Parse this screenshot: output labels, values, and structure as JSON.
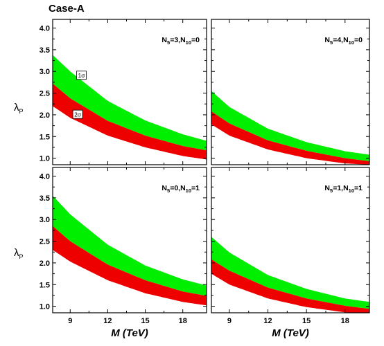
{
  "figure_title": "Case-A",
  "xlabel": "M (TeV)",
  "ylabel_main": "λ",
  "ylabel_sub": "P",
  "colors": {
    "sigma1": "#00ee00",
    "sigma2": "#ee0000",
    "axis": "#000000"
  },
  "chart_data": [
    {
      "type": "area",
      "panel": "top-left",
      "label_main": "N",
      "label_parts": [
        [
          "5",
          "=3,N"
        ],
        [
          "10",
          "=0"
        ]
      ],
      "x_ticks": [
        9,
        12,
        15,
        18
      ],
      "y_ticks": [
        "1.0",
        "1.5",
        "2.0",
        "2.5",
        "3.0",
        "3.5",
        "4.0"
      ],
      "xlim": [
        7.6,
        19.9
      ],
      "ylim": [
        0.85,
        4.2
      ],
      "series": [
        {
          "name": "1σ",
          "x": [
            7.6,
            9,
            12,
            15,
            18,
            19.9
          ],
          "upper": [
            3.38,
            3.0,
            2.32,
            1.87,
            1.55,
            1.4
          ],
          "lower": [
            2.72,
            2.38,
            1.86,
            1.52,
            1.28,
            1.18
          ]
        },
        {
          "name": "2σ",
          "x": [
            7.6,
            9,
            12,
            15,
            18,
            19.9
          ],
          "upper": [
            2.72,
            2.38,
            1.86,
            1.52,
            1.28,
            1.18
          ],
          "lower": [
            2.2,
            1.93,
            1.52,
            1.25,
            1.05,
            0.97
          ]
        }
      ],
      "annotations": [
        {
          "text": "1σ",
          "x": 9.9,
          "y": 2.88
        },
        {
          "text": "2σ",
          "x": 9.6,
          "y": 1.98
        }
      ]
    },
    {
      "type": "area",
      "panel": "top-right",
      "label_main": "N",
      "label_parts": [
        [
          "5",
          "=4,N"
        ],
        [
          "10",
          "=0"
        ]
      ],
      "x_ticks": [
        9,
        12,
        15,
        18
      ],
      "xlim": [
        7.6,
        19.9
      ],
      "ylim": [
        0.85,
        4.2
      ],
      "series": [
        {
          "name": "1σ",
          "x": [
            7.6,
            9,
            12,
            15,
            18,
            19.9
          ],
          "upper": [
            2.55,
            2.18,
            1.68,
            1.37,
            1.16,
            1.08
          ],
          "lower": [
            2.08,
            1.8,
            1.41,
            1.17,
            1.0,
            0.93
          ]
        },
        {
          "name": "2σ",
          "x": [
            7.6,
            9,
            12,
            15,
            18,
            19.9
          ],
          "upper": [
            2.08,
            1.8,
            1.41,
            1.17,
            1.0,
            0.93
          ],
          "lower": [
            1.78,
            1.52,
            1.2,
            1.0,
            0.88,
            0.85
          ]
        }
      ]
    },
    {
      "type": "area",
      "panel": "bottom-left",
      "label_main": "N",
      "label_parts": [
        [
          "5",
          "=0,N"
        ],
        [
          "10",
          "=1"
        ]
      ],
      "x_ticks": [
        9,
        12,
        15,
        18
      ],
      "y_ticks": [
        "1.0",
        "1.5",
        "2.0",
        "2.5",
        "3.0",
        "3.5",
        "4.0"
      ],
      "xlim": [
        7.6,
        19.9
      ],
      "ylim": [
        0.85,
        4.2
      ],
      "series": [
        {
          "name": "1σ",
          "x": [
            7.6,
            9,
            12,
            15,
            18,
            19.9
          ],
          "upper": [
            3.55,
            3.12,
            2.42,
            1.94,
            1.62,
            1.48
          ],
          "lower": [
            2.85,
            2.5,
            1.96,
            1.6,
            1.34,
            1.24
          ]
        },
        {
          "name": "2σ",
          "x": [
            7.6,
            9,
            12,
            15,
            18,
            19.9
          ],
          "upper": [
            2.85,
            2.5,
            1.96,
            1.6,
            1.34,
            1.24
          ],
          "lower": [
            2.3,
            2.03,
            1.6,
            1.3,
            1.1,
            1.02
          ]
        }
      ]
    },
    {
      "type": "area",
      "panel": "bottom-right",
      "label_main": "N",
      "label_parts": [
        [
          "5",
          "=1,N"
        ],
        [
          "10",
          "=1"
        ]
      ],
      "x_ticks": [
        9,
        12,
        15,
        18
      ],
      "xlim": [
        7.6,
        19.9
      ],
      "ylim": [
        0.85,
        4.2
      ],
      "series": [
        {
          "name": "1σ",
          "x": [
            7.6,
            9,
            12,
            15,
            18,
            19.9
          ],
          "upper": [
            2.6,
            2.24,
            1.72,
            1.4,
            1.18,
            1.1
          ],
          "lower": [
            2.08,
            1.82,
            1.43,
            1.18,
            1.01,
            0.94
          ]
        },
        {
          "name": "2σ",
          "x": [
            7.6,
            9,
            12,
            15,
            18,
            19.9
          ],
          "upper": [
            2.08,
            1.82,
            1.43,
            1.18,
            1.01,
            0.94
          ],
          "lower": [
            1.75,
            1.5,
            1.18,
            0.98,
            0.86,
            0.82
          ]
        }
      ]
    }
  ]
}
